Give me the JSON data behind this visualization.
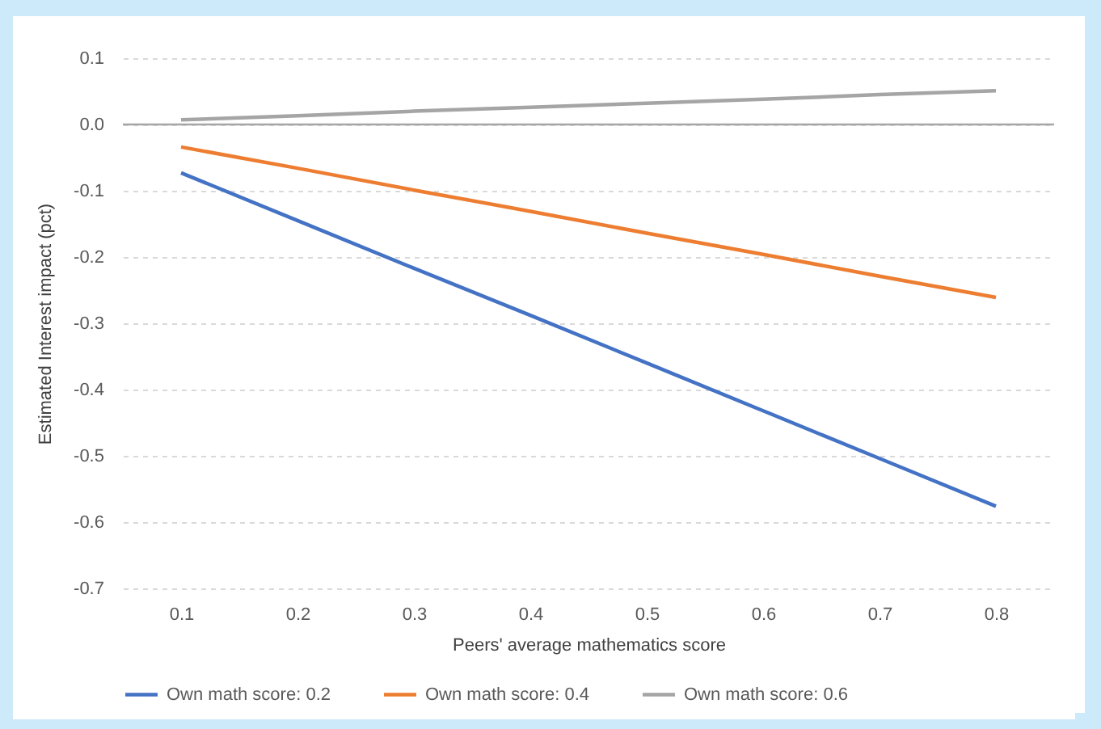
{
  "chart_data": {
    "type": "line",
    "xlabel": "Peers' average mathematics score",
    "ylabel": "Estimated Interest impact (pct)",
    "categories": [
      "0.1",
      "0.2",
      "0.3",
      "0.4",
      "0.5",
      "0.6",
      "0.7",
      "0.8"
    ],
    "series": [
      {
        "name": "Own math score: 0.2",
        "color": "#4472c4",
        "values": [
          -0.073,
          -0.145,
          -0.217,
          -0.288,
          -0.36,
          -0.432,
          -0.504,
          -0.576
        ]
      },
      {
        "name": "Own math score: 0.4",
        "color": "#ed7d31",
        "values": [
          -0.034,
          -0.066,
          -0.099,
          -0.131,
          -0.164,
          -0.196,
          -0.229,
          -0.261
        ]
      },
      {
        "name": "Own math score: 0.6",
        "color": "#a5a5a5",
        "values": [
          0.007,
          0.013,
          0.02,
          0.026,
          0.032,
          0.038,
          0.045,
          0.051
        ]
      }
    ],
    "ylim": [
      -0.7,
      0.1
    ],
    "yticks": [
      0.1,
      {
        "value": 0,
        "label": "0.0"
      },
      -0.1,
      -0.2,
      -0.3,
      -0.4,
      -0.5,
      -0.6,
      -0.7
    ],
    "ref_lines": [
      {
        "axis": "y",
        "value": 0,
        "color": "#a6a6a6"
      }
    ],
    "grid": "y",
    "legend": "bottom"
  }
}
